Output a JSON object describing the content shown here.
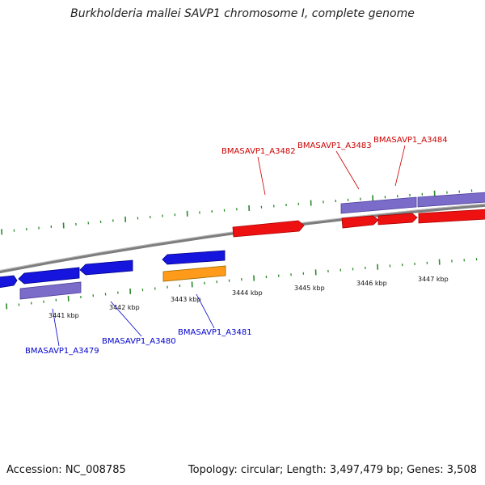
{
  "title": "Burkholderia mallei SAVP1 chromosome I, complete genome",
  "accession": "Accession: NC_008785",
  "summary": "Topology: circular; Length: 3,497,479 bp; Genes: 3,508",
  "colors": {
    "forward_cds": "#ee1111",
    "reverse_cds": "#1515dd",
    "gene_feature": "#7a6cc8",
    "other_feature": "#ff9a1a",
    "backbone": "#7d7d7d",
    "tick": "#2a8a2a",
    "label_forward": "#cc0000",
    "label_reverse": "#0000cc"
  },
  "scale": {
    "ticks": [
      {
        "label": "3441 kbp"
      },
      {
        "label": "3442 kbp"
      },
      {
        "label": "3443 kbp"
      },
      {
        "label": "3444 kbp"
      },
      {
        "label": "3445 kbp"
      },
      {
        "label": "3446 kbp"
      },
      {
        "label": "3447 kbp"
      }
    ]
  },
  "gene_labels": {
    "forward": [
      "BMASAVP1_A3482",
      "BMASAVP1_A3483",
      "BMASAVP1_A3484"
    ],
    "reverse": [
      "BMASAVP1_A3479",
      "BMASAVP1_A3480",
      "BMASAVP1_A3481"
    ]
  }
}
